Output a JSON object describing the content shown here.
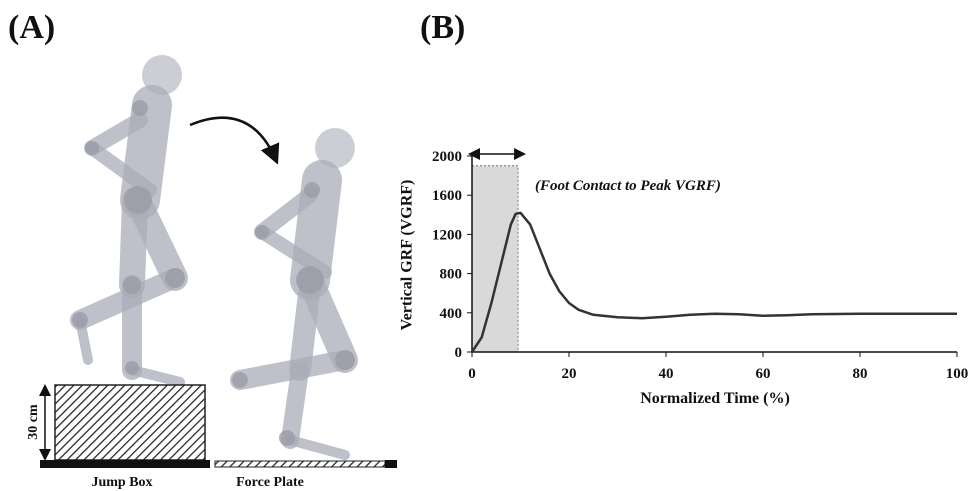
{
  "panel_a": {
    "label": "(A)",
    "box_height": "30 cm",
    "jump_box": "Jump Box",
    "force_plate": "Force Plate"
  },
  "chart_data": {
    "type": "line",
    "panel_label": "(B)",
    "annotation": "(Foot Contact to Peak VGRF)",
    "x_label": "Normalized Time (%)",
    "y_label": "Vertical GRF (VGRF)",
    "x": [
      0,
      2,
      4,
      6,
      8,
      9,
      10,
      12,
      14,
      16,
      18,
      20,
      22,
      25,
      30,
      35,
      40,
      45,
      50,
      55,
      60,
      65,
      70,
      80,
      90,
      100
    ],
    "series": [
      {
        "name": "VGRF",
        "color": "#333333",
        "values": [
          0,
          150,
          500,
          900,
          1300,
          1410,
          1420,
          1300,
          1050,
          800,
          620,
          500,
          430,
          380,
          355,
          345,
          360,
          380,
          390,
          385,
          370,
          375,
          385,
          390,
          390,
          390
        ]
      }
    ],
    "highlight": {
      "x": [
        0,
        9.5
      ],
      "y": 1900
    },
    "xlim": [
      0,
      100
    ],
    "xticks": [
      0,
      20,
      40,
      60,
      80,
      100
    ],
    "ylim": [
      0,
      2000
    ],
    "yticks": [
      0,
      400,
      800,
      1200,
      1600,
      2000
    ]
  }
}
